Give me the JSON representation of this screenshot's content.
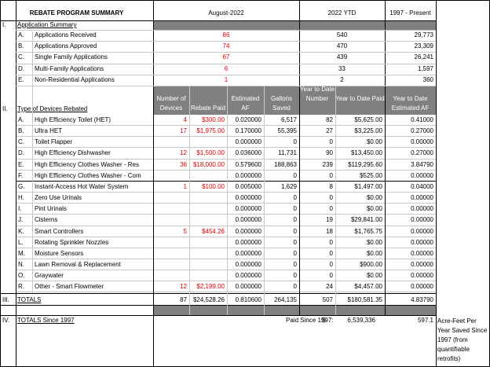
{
  "header": {
    "title": "REBATE PROGRAM SUMMARY",
    "col_month": "August-2022",
    "col_ytd": "2022  YTD",
    "col_total": "1997 - Present"
  },
  "section1": {
    "num": "I.",
    "title": "Application Summary",
    "rows": [
      {
        "letter": "A.",
        "label": "Applications Received",
        "month": "86",
        "ytd": "540",
        "total": "29,773"
      },
      {
        "letter": "B.",
        "label": "Applications Approved",
        "month": "74",
        "ytd": "470",
        "total": "23,309"
      },
      {
        "letter": "C.",
        "label": "Single Family Applications",
        "month": "67",
        "ytd": "439",
        "total": "26,241"
      },
      {
        "letter": "D.",
        "label": "Multi-Family Applications",
        "month": "6",
        "ytd": "33",
        "total": "1,597"
      },
      {
        "letter": "E.",
        "label": "Non-Residential Applications",
        "month": "1",
        "ytd": "2",
        "total": "360"
      }
    ]
  },
  "section2": {
    "num": "II.",
    "title": "Type of Devices Rebated",
    "columns": {
      "devices": "Number of Devices",
      "paid": "Rebate Paid",
      "af": "Estimated AF",
      "gallons": "Gallons Saved",
      "ytd_num": "Year to Date Number",
      "ytd_paid": "Year to Date Paid",
      "ytd_af": "Year to Date Estimated AF"
    },
    "rows": [
      {
        "letter": "A.",
        "label": "High Efficiency Toilet (HET)",
        "devices": "4",
        "paid": "$300.00",
        "af": "0.020000",
        "gallons": "6,517",
        "ytd_num": "82",
        "ytd_paid": "$5,625.00",
        "ytd_af": "0.41000"
      },
      {
        "letter": "B.",
        "label": "Ultra HET",
        "devices": "17",
        "paid": "$1,975.00",
        "af": "0.170000",
        "gallons": "55,395",
        "ytd_num": "27",
        "ytd_paid": "$3,225.00",
        "ytd_af": "0.27000"
      },
      {
        "letter": "C.",
        "label": "Toilet Flapper",
        "devices": "",
        "paid": "",
        "af": "0.000000",
        "gallons": "0",
        "ytd_num": "0",
        "ytd_paid": "$0.00",
        "ytd_af": "0.00000"
      },
      {
        "letter": "D.",
        "label": "High Efficiency Dishwasher",
        "devices": "12",
        "paid": "$1,500.00",
        "af": "0.036000",
        "gallons": "11,731",
        "ytd_num": "90",
        "ytd_paid": "$13,450.00",
        "ytd_af": "0.27000"
      },
      {
        "letter": "E.",
        "label": "High Efficiency Clothes Washer - Res",
        "devices": "36",
        "paid": "$18,000.00",
        "af": "0.579600",
        "gallons": "188,863",
        "ytd_num": "239",
        "ytd_paid": "$119,295.60",
        "ytd_af": "3.84790"
      },
      {
        "letter": "F.",
        "label": "High Efficiency Clothes Washer - Com",
        "devices": "",
        "paid": "",
        "af": "0.000000",
        "gallons": "0",
        "ytd_num": "0",
        "ytd_paid": "$525.00",
        "ytd_af": "0.00000"
      },
      {
        "letter": "G.",
        "label": "Instant-Access Hot Water System",
        "devices": "1",
        "paid": "$100.00",
        "af": "0.005000",
        "gallons": "1,629",
        "ytd_num": "8",
        "ytd_paid": "$1,497.00",
        "ytd_af": "0.04000"
      },
      {
        "letter": "H.",
        "label": "Zero Use Urinals",
        "devices": "",
        "paid": "",
        "af": "0.000000",
        "gallons": "0",
        "ytd_num": "0",
        "ytd_paid": "$0.00",
        "ytd_af": "0.00000"
      },
      {
        "letter": "I.",
        "label": "Pint Urinals",
        "devices": "",
        "paid": "",
        "af": "0.000000",
        "gallons": "0",
        "ytd_num": "0",
        "ytd_paid": "$0.00",
        "ytd_af": "0.00000"
      },
      {
        "letter": "J.",
        "label": "Cisterns",
        "devices": "",
        "paid": "",
        "af": "0.000000",
        "gallons": "0",
        "ytd_num": "19",
        "ytd_paid": "$29,841.00",
        "ytd_af": "0.00000"
      },
      {
        "letter": "K.",
        "label": "Smart Controllers",
        "devices": "5",
        "paid": "$454.26",
        "af": "0.000000",
        "gallons": "0",
        "ytd_num": "18",
        "ytd_paid": "$1,765.75",
        "ytd_af": "0.00000"
      },
      {
        "letter": "L.",
        "label": "Rotating Sprinkler Nozzles",
        "devices": "",
        "paid": "",
        "af": "0.000000",
        "gallons": "0",
        "ytd_num": "0",
        "ytd_paid": "$0.00",
        "ytd_af": "0.00000"
      },
      {
        "letter": "M.",
        "label": "Moisture Sensors",
        "devices": "",
        "paid": "",
        "af": "0.000000",
        "gallons": "0",
        "ytd_num": "0",
        "ytd_paid": "$0.00",
        "ytd_af": "0.00000"
      },
      {
        "letter": "N.",
        "label": "Lawn Removal & Replacement",
        "devices": "",
        "paid": "",
        "af": "0.000000",
        "gallons": "0",
        "ytd_num": "0",
        "ytd_paid": "$900.00",
        "ytd_af": "0.00000"
      },
      {
        "letter": "O.",
        "label": "Graywater",
        "devices": "",
        "paid": "",
        "af": "0.000000",
        "gallons": "0",
        "ytd_num": "0",
        "ytd_paid": "$0.00",
        "ytd_af": "0.00000"
      },
      {
        "letter": "R.",
        "label": "Other - Smart Flowmeter",
        "devices": "12",
        "paid": "$2,199.00",
        "af": "0.000000",
        "gallons": "0",
        "ytd_num": "24",
        "ytd_paid": "$4,457.00",
        "ytd_af": "0.00000"
      }
    ]
  },
  "section3": {
    "num": "III.",
    "title": "TOTALS",
    "devices": "87",
    "paid": "$24,528.26",
    "af": "0.810600",
    "gallons": "264,135",
    "ytd_num": "507",
    "ytd_paid": "$180,581.35",
    "ytd_af": "4.83790"
  },
  "section4": {
    "num": "IV.",
    "title": "TOTALS Since 1997",
    "paid_label": "Paid Since 1997:",
    "paid_currency": "$",
    "paid_value": "6,539,336",
    "af_value": "597.1",
    "af_note": "Acre-Feet Per Year Saved Since 1997 (from quantifiable retrofits)"
  },
  "colors": {
    "header_band": "#808080",
    "month_values": "#e00000"
  }
}
